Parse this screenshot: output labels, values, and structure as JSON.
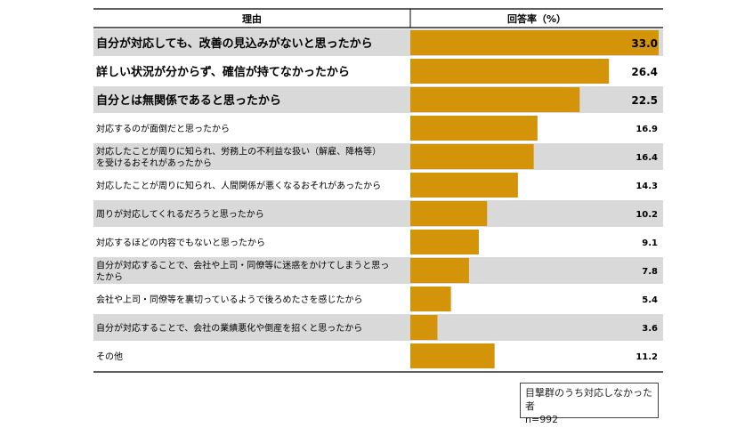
{
  "chart_data": {
    "type": "bar",
    "orientation": "horizontal",
    "header_reason": "理由",
    "header_value": "回答率（%）",
    "categories": [
      "自分が対応しても、改善の見込みがないと思ったから",
      "詳しい状況が分からず、確信が持てなかったから",
      "自分とは無関係であると思ったから",
      "対応するのが面倒だと思ったから",
      "対応したことが周りに知られ、労務上の不利益な扱い（解雇、降格等）を受けるおそれがあったから",
      "対応したことが周りに知られ、人間関係が悪くなるおそれがあったから",
      "周りが対応してくれるだろうと思ったから",
      "対応するほどの内容でもないと思ったから",
      "自分が対応することで、会社や上司・同僚等に迷惑をかけてしまうと思ったから",
      "会社や上司・同僚等を裏切っているようで後ろめたさを感じたから",
      "自分が対応することで、会社の業績悪化や倒産を招くと思ったから",
      "その他"
    ],
    "category_lines": [
      [
        "自分が対応しても、改善の見込みがないと思ったから"
      ],
      [
        "詳しい状況が分からず、確信が持てなかったから"
      ],
      [
        "自分とは無関係であると思ったから"
      ],
      [
        "対応するのが面倒だと思ったから"
      ],
      [
        "対応したことが周りに知られ、労務上の不利益な扱い（解雇、降格等）",
        "を受けるおそれがあったから"
      ],
      [
        "対応したことが周りに知られ、人間関係が悪くなるおそれがあったから"
      ],
      [
        "周りが対応してくれるだろうと思ったから"
      ],
      [
        "対応するほどの内容でもないと思ったから"
      ],
      [
        "自分が対応することで、会社や上司・同僚等に迷惑をかけてしまうと思っ",
        "たから"
      ],
      [
        "会社や上司・同僚等を裏切っているようで後ろめたさを感じたから"
      ],
      [
        "自分が対応することで、会社の業績悪化や倒産を招くと思ったから"
      ],
      [
        "その他"
      ]
    ],
    "values": [
      33.0,
      26.4,
      22.5,
      16.9,
      16.4,
      14.3,
      10.2,
      9.1,
      7.8,
      5.4,
      3.6,
      11.2
    ],
    "value_labels": [
      "33.0",
      "26.4",
      "22.5",
      "16.9",
      "16.4",
      "14.3",
      "10.2",
      "9.1",
      "7.8",
      "5.4",
      "3.6",
      "11.2"
    ],
    "emphasized_rows": 3,
    "xlim": [
      0,
      33.0
    ],
    "bar_color": "#D4940A",
    "stripe_color": "#D9D9D9",
    "note_line1": "目撃群のうち対応しなかった者",
    "note_line2": "n=992"
  }
}
